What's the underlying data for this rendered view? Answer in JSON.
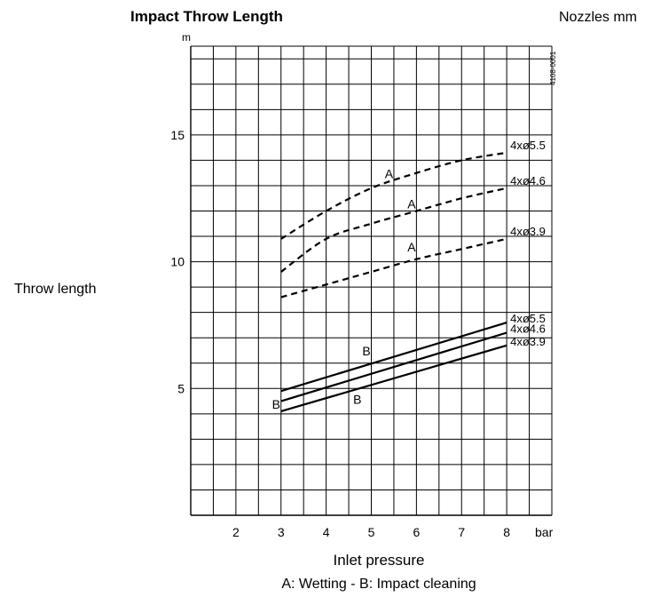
{
  "chart_data": {
    "type": "line",
    "title": "Impact Throw Length",
    "legend_title": "Nozzles mm",
    "xlabel": "Inlet pressure",
    "x_unit": "bar",
    "ylabel": "Throw length",
    "y_unit": "m",
    "caption": "A: Wetting - B: Impact cleaning",
    "figure_code": "4108-0001",
    "xlim": [
      1,
      9
    ],
    "ylim": [
      0,
      18.5
    ],
    "x_ticks": [
      2,
      3,
      4,
      5,
      6,
      7,
      8
    ],
    "y_ticks": [
      5,
      10,
      15
    ],
    "grid": true,
    "series": [
      {
        "name": "4xø5.5",
        "group": "A",
        "style": "dashed",
        "x": [
          3,
          4,
          5,
          6,
          7,
          8
        ],
        "y": [
          10.9,
          12.0,
          12.9,
          13.5,
          14.0,
          14.3
        ]
      },
      {
        "name": "4xø4.6",
        "group": "A",
        "style": "dashed",
        "x": [
          3,
          4,
          5,
          6,
          7,
          8
        ],
        "y": [
          9.6,
          10.9,
          11.5,
          12.0,
          12.5,
          12.9
        ]
      },
      {
        "name": "4xø3.9",
        "group": "A",
        "style": "dashed",
        "x": [
          3,
          4,
          5,
          6,
          7,
          8
        ],
        "y": [
          8.6,
          9.1,
          9.6,
          10.1,
          10.5,
          10.9
        ]
      },
      {
        "name": "4xø5.5",
        "group": "B",
        "style": "solid",
        "x": [
          3,
          8
        ],
        "y": [
          4.9,
          7.6
        ]
      },
      {
        "name": "4xø4.6",
        "group": "B",
        "style": "solid",
        "x": [
          3,
          8
        ],
        "y": [
          4.5,
          7.2
        ]
      },
      {
        "name": "4xø3.9",
        "group": "B",
        "style": "solid",
        "x": [
          3,
          8
        ],
        "y": [
          4.1,
          6.7
        ]
      }
    ],
    "annotations": [
      {
        "text": "A",
        "x": 5.3,
        "y": 13.3
      },
      {
        "text": "A",
        "x": 5.8,
        "y": 12.1
      },
      {
        "text": "A",
        "x": 5.8,
        "y": 10.4
      },
      {
        "text": "B",
        "x": 4.8,
        "y": 6.3
      },
      {
        "text": "B",
        "x": 2.8,
        "y": 4.2
      },
      {
        "text": "B",
        "x": 4.6,
        "y": 4.4
      }
    ]
  }
}
